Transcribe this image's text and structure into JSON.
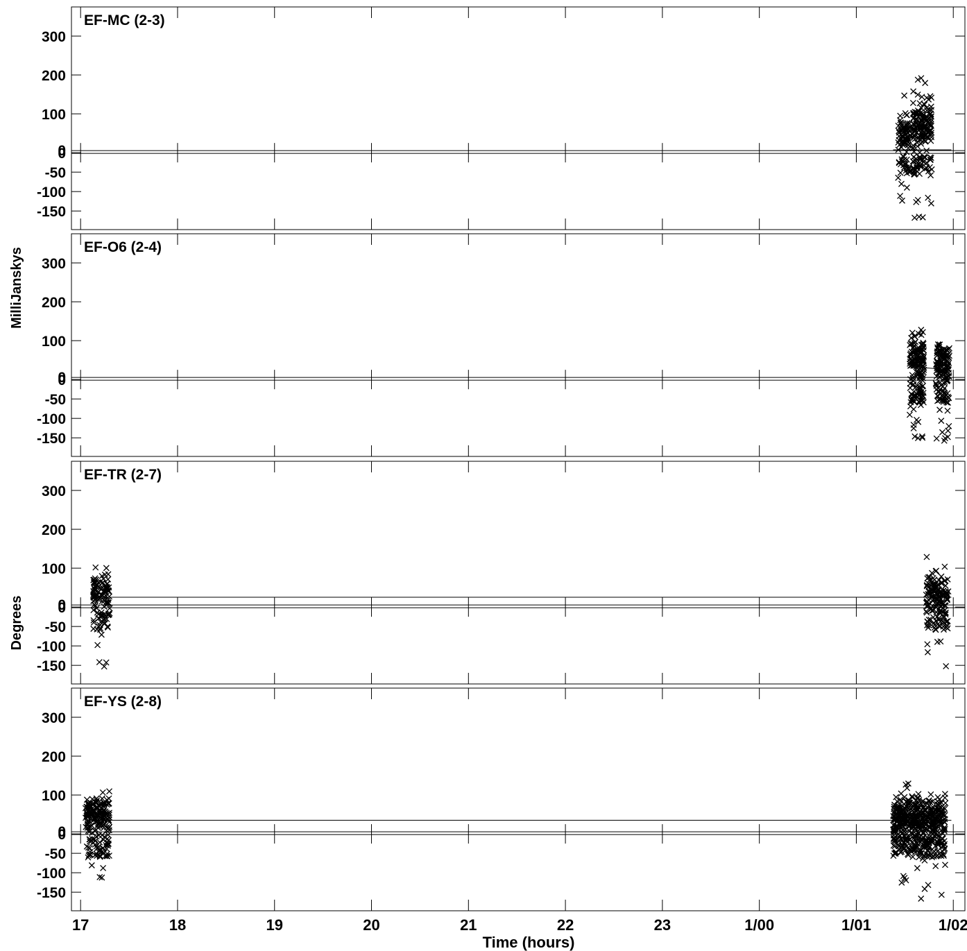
{
  "chart_data": {
    "type": "scatter",
    "x_unit": "hours",
    "xlabel": "Time (hours)",
    "x_ticks": [
      {
        "label": "17",
        "value": 17
      },
      {
        "label": "18",
        "value": 18
      },
      {
        "label": "19",
        "value": 19
      },
      {
        "label": "20",
        "value": 20
      },
      {
        "label": "21",
        "value": 21
      },
      {
        "label": "22",
        "value": 22
      },
      {
        "label": "23",
        "value": 23
      },
      {
        "label": "1/00",
        "value": 24
      },
      {
        "label": "1/01",
        "value": 25
      },
      {
        "label": "1/02",
        "value": 26
      }
    ],
    "xlim": [
      16.92,
      26.12
    ],
    "ylim": [
      -180,
      375
    ],
    "ylim_amplitude": [
      0,
      375
    ],
    "y_ticks_phase": [
      300,
      200,
      100,
      0,
      -50,
      -100,
      -150
    ],
    "y_ticks_amplitude": [
      0
    ],
    "ylabel_amplitude": "MilliJanskys",
    "ylabel_phase": "Degrees",
    "marker": "x",
    "color": "#000000",
    "panels": [
      {
        "label": "EF-MC (2-3)",
        "amplitude_model": [
          [
            25.38,
            3
          ],
          [
            25.98,
            3
          ]
        ],
        "scans": [
          {
            "x_start": 25.43,
            "x_end": 25.56,
            "count": 90,
            "center": 50,
            "spread": 45,
            "outlier_count": 14,
            "outlier_min": -160,
            "outlier_max": 150
          },
          {
            "x_start": 25.58,
            "x_end": 25.78,
            "count": 170,
            "center": 70,
            "spread": 55,
            "outlier_count": 30,
            "outlier_min": -168,
            "outlier_max": 205
          }
        ]
      },
      {
        "label": "EF-O6 (2-4)",
        "amplitude_model": [
          [
            25.56,
            40
          ],
          [
            25.7,
            38
          ],
          [
            25.96,
            30
          ]
        ],
        "scans": [
          {
            "x_start": 25.55,
            "x_end": 25.7,
            "count": 150,
            "center": 50,
            "spread": 50,
            "outlier_count": 35,
            "outlier_min": -157,
            "outlier_max": 130
          },
          {
            "x_start": 25.82,
            "x_end": 25.96,
            "count": 130,
            "center": 40,
            "spread": 50,
            "outlier_count": 20,
            "outlier_min": -165,
            "outlier_max": 110
          }
        ]
      },
      {
        "label": "EF-TR (2-7)",
        "amplitude_model": [
          [
            17.12,
            30
          ],
          [
            25.98,
            30
          ]
        ],
        "scans": [
          {
            "x_start": 17.13,
            "x_end": 17.3,
            "count": 110,
            "center": 45,
            "spread": 45,
            "outlier_count": 12,
            "outlier_min": -155,
            "outlier_max": 135
          },
          {
            "x_start": 25.72,
            "x_end": 25.95,
            "count": 140,
            "center": 35,
            "spread": 50,
            "outlier_count": 25,
            "outlier_min": -155,
            "outlier_max": 160
          }
        ]
      },
      {
        "label": "EF-YS (2-8)",
        "amplitude_model": [
          [
            17.05,
            45
          ],
          [
            25.98,
            45
          ]
        ],
        "scans": [
          {
            "x_start": 17.05,
            "x_end": 17.3,
            "count": 200,
            "center": 50,
            "spread": 45,
            "outlier_count": 15,
            "outlier_min": -118,
            "outlier_max": 112
          },
          {
            "x_start": 25.38,
            "x_end": 25.92,
            "count": 520,
            "center": 40,
            "spread": 55,
            "outlier_count": 40,
            "outlier_min": -180,
            "outlier_max": 135
          }
        ]
      }
    ]
  }
}
